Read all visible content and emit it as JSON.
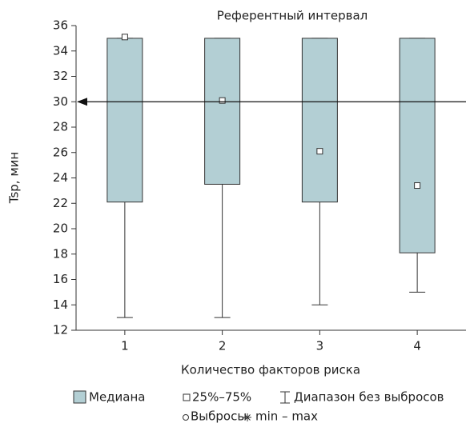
{
  "chart_data": {
    "type": "box",
    "annotation": "Референтный интервал",
    "reference_value": 30,
    "xlabel": "Количество факторов риска",
    "ylabel": "Tsp, мин",
    "categories": [
      "1",
      "2",
      "3",
      "4"
    ],
    "box_color": "#b3cfd4",
    "q1": [
      22.1,
      23.5,
      22.1,
      18.1
    ],
    "q3": [
      35,
      35,
      35,
      35
    ],
    "low": [
      13,
      13,
      14,
      15
    ],
    "high": [
      35,
      35,
      35,
      35
    ],
    "marker": [
      35.1,
      30.1,
      26.1,
      23.4
    ],
    "ylim": [
      12,
      36
    ],
    "yticks": [
      12,
      14,
      16,
      18,
      20,
      22,
      24,
      26,
      28,
      30,
      32,
      34,
      36
    ],
    "legend": [
      "Медиана",
      "25%–75%",
      "Диапазон без выбросов",
      "Выбросы",
      "min – max"
    ]
  }
}
